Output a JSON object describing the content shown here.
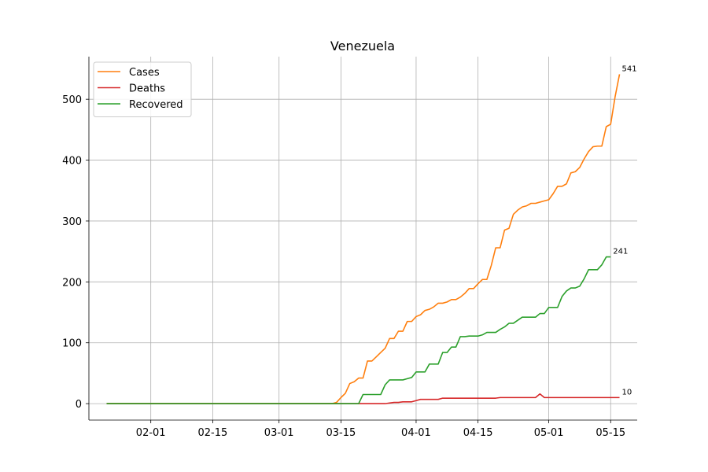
{
  "chart_data": {
    "type": "line",
    "title": "Venezuela",
    "xlabel": "",
    "ylabel": "",
    "grid": true,
    "legend_position": "top-left",
    "x_axis_type": "date",
    "xlim": [
      "2020-01-18",
      "2020-05-21"
    ],
    "ylim": [
      -27,
      570
    ],
    "x_ticks": [
      "2020-02-01",
      "2020-02-15",
      "2020-03-01",
      "2020-03-15",
      "2020-04-01",
      "2020-04-15",
      "2020-05-01",
      "2020-05-15"
    ],
    "x_tick_labels": [
      "02-01",
      "02-15",
      "03-01",
      "03-15",
      "04-01",
      "04-15",
      "05-01",
      "05-15"
    ],
    "y_ticks": [
      0,
      100,
      200,
      300,
      400,
      500
    ],
    "y_tick_labels": [
      "0",
      "100",
      "200",
      "300",
      "400",
      "500"
    ],
    "series": [
      {
        "name": "Cases",
        "color": "#ff7f0e",
        "end_label": "541",
        "points": [
          [
            "2020-01-22",
            0
          ],
          [
            "2020-03-13",
            0
          ],
          [
            "2020-03-14",
            2
          ],
          [
            "2020-03-15",
            10
          ],
          [
            "2020-03-16",
            17
          ],
          [
            "2020-03-17",
            33
          ],
          [
            "2020-03-18",
            36
          ],
          [
            "2020-03-19",
            42
          ],
          [
            "2020-03-20",
            42
          ],
          [
            "2020-03-21",
            70
          ],
          [
            "2020-03-22",
            70
          ],
          [
            "2020-03-23",
            77
          ],
          [
            "2020-03-24",
            84
          ],
          [
            "2020-03-25",
            91
          ],
          [
            "2020-03-26",
            107
          ],
          [
            "2020-03-27",
            107
          ],
          [
            "2020-03-28",
            119
          ],
          [
            "2020-03-29",
            119
          ],
          [
            "2020-03-30",
            135
          ],
          [
            "2020-03-31",
            135
          ],
          [
            "2020-04-01",
            143
          ],
          [
            "2020-04-02",
            146
          ],
          [
            "2020-04-03",
            153
          ],
          [
            "2020-04-04",
            155
          ],
          [
            "2020-04-05",
            159
          ],
          [
            "2020-04-06",
            165
          ],
          [
            "2020-04-07",
            165
          ],
          [
            "2020-04-08",
            167
          ],
          [
            "2020-04-09",
            171
          ],
          [
            "2020-04-10",
            171
          ],
          [
            "2020-04-11",
            175
          ],
          [
            "2020-04-12",
            181
          ],
          [
            "2020-04-13",
            189
          ],
          [
            "2020-04-14",
            189
          ],
          [
            "2020-04-15",
            197
          ],
          [
            "2020-04-16",
            204
          ],
          [
            "2020-04-17",
            204
          ],
          [
            "2020-04-18",
            227
          ],
          [
            "2020-04-19",
            256
          ],
          [
            "2020-04-20",
            256
          ],
          [
            "2020-04-21",
            285
          ],
          [
            "2020-04-22",
            288
          ],
          [
            "2020-04-23",
            311
          ],
          [
            "2020-04-24",
            318
          ],
          [
            "2020-04-25",
            323
          ],
          [
            "2020-04-26",
            325
          ],
          [
            "2020-04-27",
            329
          ],
          [
            "2020-04-28",
            329
          ],
          [
            "2020-04-29",
            331
          ],
          [
            "2020-04-30",
            333
          ],
          [
            "2020-05-01",
            335
          ],
          [
            "2020-05-02",
            345
          ],
          [
            "2020-05-03",
            357
          ],
          [
            "2020-05-04",
            357
          ],
          [
            "2020-05-05",
            361
          ],
          [
            "2020-05-06",
            379
          ],
          [
            "2020-05-07",
            381
          ],
          [
            "2020-05-08",
            388
          ],
          [
            "2020-05-09",
            402
          ],
          [
            "2020-05-10",
            414
          ],
          [
            "2020-05-11",
            422
          ],
          [
            "2020-05-12",
            423
          ],
          [
            "2020-05-13",
            423
          ],
          [
            "2020-05-14",
            455
          ],
          [
            "2020-05-15",
            459
          ],
          [
            "2020-05-16",
            504
          ],
          [
            "2020-05-17",
            541
          ]
        ]
      },
      {
        "name": "Deaths",
        "color": "#d62728",
        "end_label": "10",
        "points": [
          [
            "2020-01-22",
            0
          ],
          [
            "2020-03-25",
            0
          ],
          [
            "2020-03-26",
            1
          ],
          [
            "2020-03-27",
            2
          ],
          [
            "2020-03-28",
            2
          ],
          [
            "2020-03-29",
            3
          ],
          [
            "2020-03-30",
            3
          ],
          [
            "2020-03-31",
            3
          ],
          [
            "2020-04-01",
            5
          ],
          [
            "2020-04-02",
            7
          ],
          [
            "2020-04-03",
            7
          ],
          [
            "2020-04-06",
            7
          ],
          [
            "2020-04-07",
            9
          ],
          [
            "2020-04-19",
            9
          ],
          [
            "2020-04-20",
            10
          ],
          [
            "2020-04-28",
            10
          ],
          [
            "2020-04-29",
            16
          ],
          [
            "2020-04-30",
            10
          ],
          [
            "2020-05-17",
            10
          ]
        ]
      },
      {
        "name": "Recovered",
        "color": "#2ca02c",
        "end_label": "241",
        "points": [
          [
            "2020-01-22",
            0
          ],
          [
            "2020-03-19",
            0
          ],
          [
            "2020-03-20",
            15
          ],
          [
            "2020-03-24",
            15
          ],
          [
            "2020-03-25",
            31
          ],
          [
            "2020-03-26",
            39
          ],
          [
            "2020-03-27",
            39
          ],
          [
            "2020-03-28",
            39
          ],
          [
            "2020-03-29",
            39
          ],
          [
            "2020-03-30",
            41
          ],
          [
            "2020-03-31",
            43
          ],
          [
            "2020-04-01",
            52
          ],
          [
            "2020-04-02",
            52
          ],
          [
            "2020-04-03",
            52
          ],
          [
            "2020-04-04",
            65
          ],
          [
            "2020-04-05",
            65
          ],
          [
            "2020-04-06",
            65
          ],
          [
            "2020-04-07",
            84
          ],
          [
            "2020-04-08",
            84
          ],
          [
            "2020-04-09",
            93
          ],
          [
            "2020-04-10",
            93
          ],
          [
            "2020-04-11",
            110
          ],
          [
            "2020-04-12",
            110
          ],
          [
            "2020-04-13",
            111
          ],
          [
            "2020-04-14",
            111
          ],
          [
            "2020-04-15",
            111
          ],
          [
            "2020-04-16",
            113
          ],
          [
            "2020-04-17",
            117
          ],
          [
            "2020-04-18",
            117
          ],
          [
            "2020-04-19",
            117
          ],
          [
            "2020-04-20",
            122
          ],
          [
            "2020-04-21",
            126
          ],
          [
            "2020-04-22",
            132
          ],
          [
            "2020-04-23",
            132
          ],
          [
            "2020-04-24",
            137
          ],
          [
            "2020-04-25",
            142
          ],
          [
            "2020-04-26",
            142
          ],
          [
            "2020-04-27",
            142
          ],
          [
            "2020-04-28",
            142
          ],
          [
            "2020-04-29",
            148
          ],
          [
            "2020-04-30",
            148
          ],
          [
            "2020-05-01",
            158
          ],
          [
            "2020-05-02",
            158
          ],
          [
            "2020-05-03",
            158
          ],
          [
            "2020-05-04",
            176
          ],
          [
            "2020-05-05",
            185
          ],
          [
            "2020-05-06",
            190
          ],
          [
            "2020-05-07",
            190
          ],
          [
            "2020-05-08",
            193
          ],
          [
            "2020-05-09",
            205
          ],
          [
            "2020-05-10",
            220
          ],
          [
            "2020-05-11",
            220
          ],
          [
            "2020-05-12",
            220
          ],
          [
            "2020-05-13",
            228
          ],
          [
            "2020-05-14",
            241
          ],
          [
            "2020-05-15",
            241
          ]
        ]
      }
    ]
  }
}
